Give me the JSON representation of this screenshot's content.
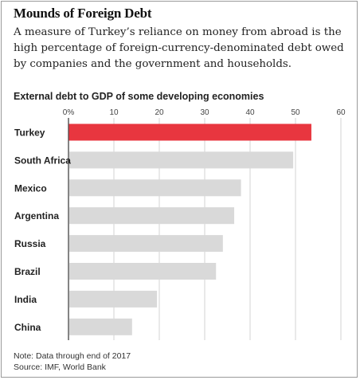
{
  "header": {
    "title": "Mounds of Foreign Debt",
    "subtitle": "A measure of Turkey’s reliance on money from abroad is the high percentage of foreign-currency-denominated debt owed by companies and the government and households."
  },
  "chart_data": {
    "type": "bar",
    "orientation": "horizontal",
    "title": "External debt to GDP of some developing economies",
    "categories": [
      "Turkey",
      "South Africa",
      "Mexico",
      "Argentina",
      "Russia",
      "Brazil",
      "India",
      "China"
    ],
    "values": [
      53.5,
      49.5,
      38,
      36.5,
      34,
      32.5,
      19.5,
      14
    ],
    "xlim": [
      0,
      60
    ],
    "ticks": [
      0,
      10,
      20,
      30,
      40,
      50,
      60
    ],
    "tick_labels": [
      "0%",
      "10",
      "20",
      "30",
      "40",
      "50",
      "60"
    ],
    "grid": true,
    "colors": {
      "highlight": "#e8363f",
      "default": "#d9d9d9",
      "grid": "#c8c8c8"
    },
    "highlight_category": "Turkey"
  },
  "footer": {
    "note": "Note: Data through end of 2017",
    "source": "Source: IMF, World Bank"
  }
}
